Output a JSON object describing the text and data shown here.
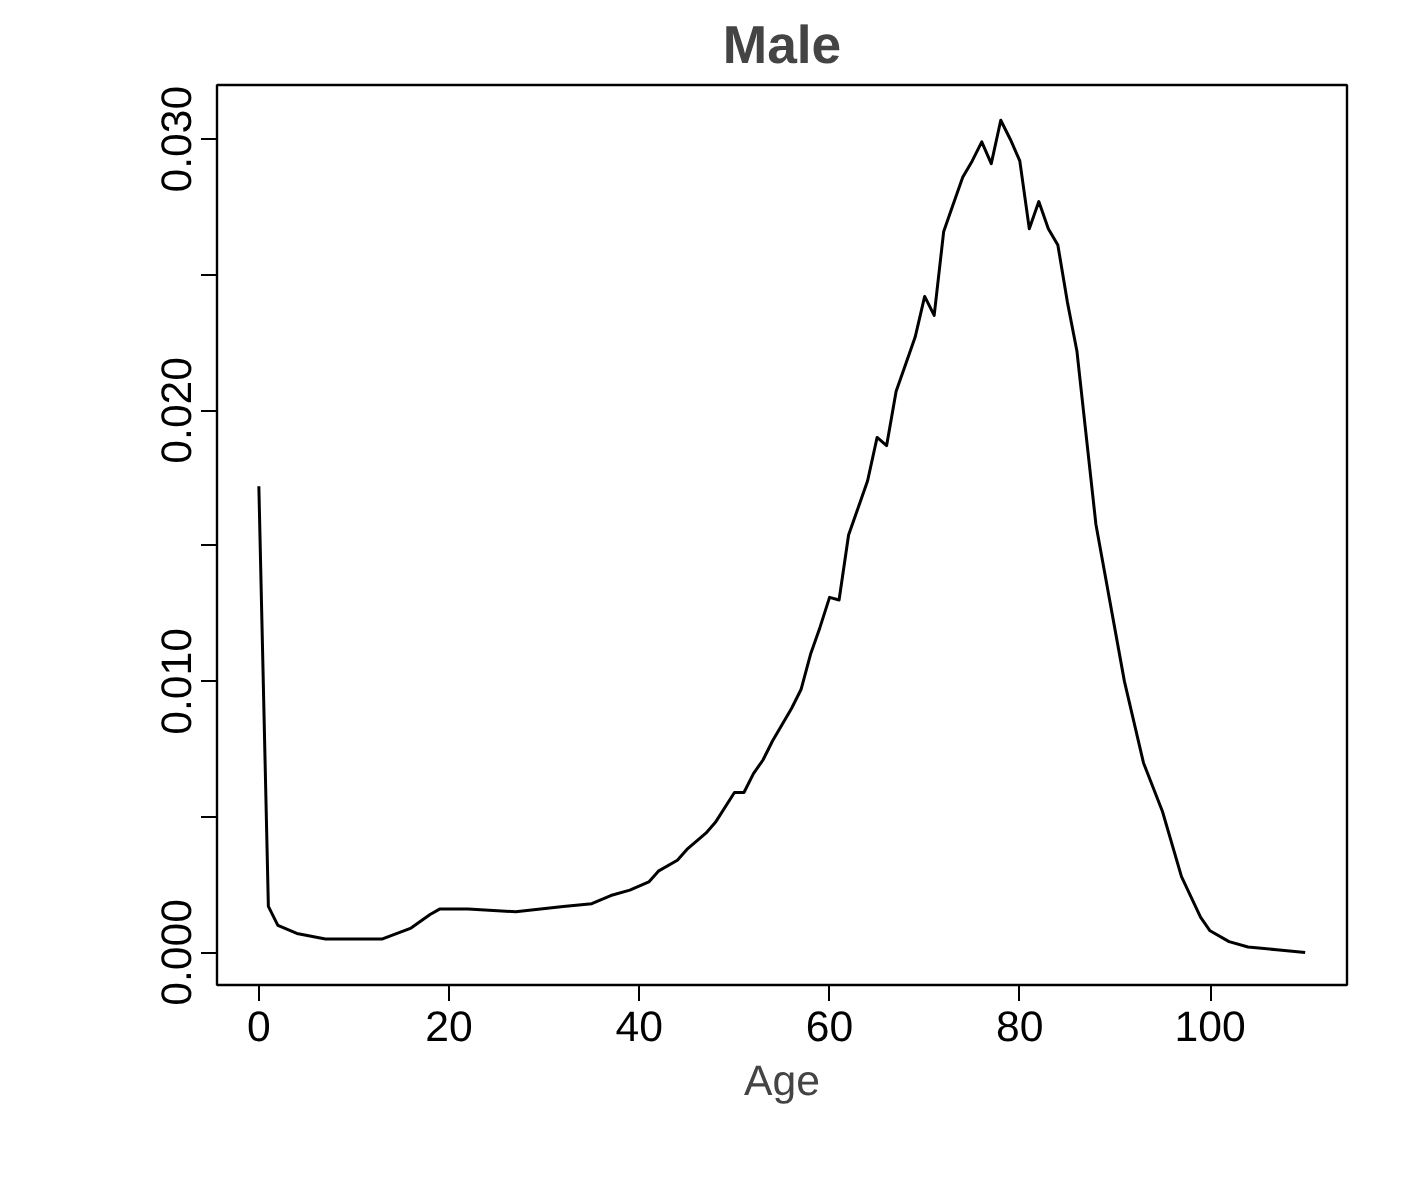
{
  "chart_data": {
    "type": "line",
    "title": "Male",
    "xlabel": "Age",
    "x": [
      0,
      1,
      2,
      4,
      7,
      10,
      13,
      16,
      18,
      19,
      22,
      27,
      32,
      35,
      37,
      39,
      41,
      42,
      44,
      45,
      47,
      48,
      50,
      51,
      52,
      53,
      54,
      55,
      56,
      57,
      58,
      59,
      60,
      61,
      62,
      63,
      64,
      65,
      66,
      67,
      68,
      69,
      70,
      71,
      72,
      73,
      74,
      75,
      76,
      77,
      78,
      79,
      80,
      81,
      82,
      83,
      84,
      85,
      86,
      88,
      91,
      93,
      95,
      97,
      99,
      100,
      102,
      104,
      107,
      110
    ],
    "series": [
      {
        "color": "#000000",
        "values": [
          0.0172,
          0.0017,
          0.001,
          0.0007,
          0.0005,
          0.0005,
          0.0005,
          0.0009,
          0.0014,
          0.0016,
          0.0016,
          0.0015,
          0.0017,
          0.0018,
          0.0021,
          0.0023,
          0.0026,
          0.003,
          0.0034,
          0.0038,
          0.0044,
          0.0048,
          0.0059,
          0.0059,
          0.0066,
          0.0071,
          0.0078,
          0.0084,
          0.009,
          0.0097,
          0.011,
          0.012,
          0.0131,
          0.013,
          0.0154,
          0.0164,
          0.0174,
          0.019,
          0.0187,
          0.0207,
          0.0217,
          0.0227,
          0.0242,
          0.0235,
          0.0266,
          0.0276,
          0.0286,
          0.0292,
          0.0299,
          0.0291,
          0.0307,
          0.03,
          0.0292,
          0.0267,
          0.0277,
          0.0267,
          0.0261,
          0.024,
          0.0222,
          0.0158,
          0.01,
          0.007,
          0.0052,
          0.0028,
          0.0013,
          0.0008,
          0.0004,
          0.0002,
          0.0001,
          0.0
        ]
      }
    ],
    "xlim": [
      -4.4,
      114.4
    ],
    "ylim": [
      -0.0012,
      0.032
    ],
    "xticks": [
      0,
      20,
      40,
      60,
      80,
      100
    ],
    "yticks": [
      {
        "value": 0,
        "label": "0.000"
      },
      {
        "value": 0.005,
        "label": null
      },
      {
        "value": 0.01,
        "label": "0.010"
      },
      {
        "value": 0.015,
        "label": null
      },
      {
        "value": 0.02,
        "label": "0.020"
      },
      {
        "value": 0.025,
        "label": null
      },
      {
        "value": 0.03,
        "label": "0.030"
      }
    ],
    "grid": false,
    "marker": "none",
    "line_style": "solid"
  }
}
